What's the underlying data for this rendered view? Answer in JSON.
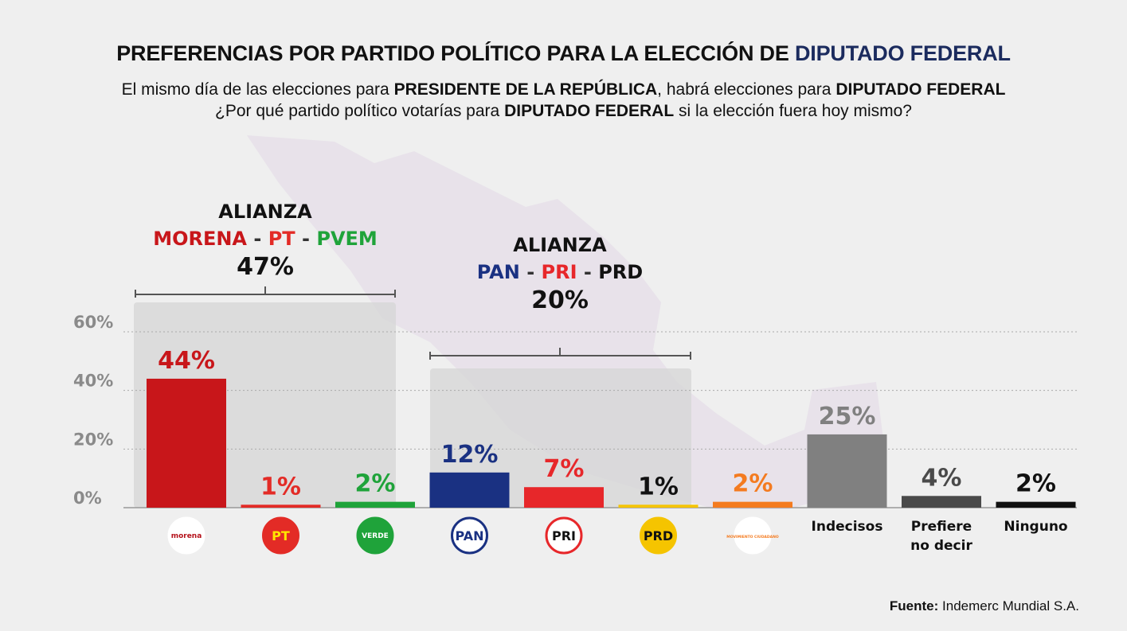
{
  "header": {
    "title_main": "PREFERENCIAS POR PARTIDO POLÍTICO PARA LA ELECCIÓN DE",
    "title_highlight": "DIPUTADO FEDERAL",
    "sub1_a": "El mismo día de las elecciones para",
    "sub1_b": "PRESIDENTE DE LA REPÚBLICA",
    "sub1_c": ", habrá elecciones para",
    "sub1_d": "DIPUTADO FEDERAL",
    "sub2_a": "¿Por qué partido político votarías para",
    "sub2_b": "DIPUTADO FEDERAL",
    "sub2_c": "si la elección fuera hoy mismo?"
  },
  "alliances": {
    "a1": {
      "label": "ALIANZA",
      "p1": "MORENA",
      "p2": "PT",
      "p3": "PVEM",
      "dash": "-",
      "total": "47%"
    },
    "a2": {
      "label": "ALIANZA",
      "p1": "PAN",
      "p2": "PRI",
      "p3": "PRD",
      "dash": "-",
      "total": "20%"
    }
  },
  "footer": {
    "label": "Fuente:",
    "value": "Indemerc Mundial S.A."
  },
  "chart_data": {
    "type": "bar",
    "title": "PREFERENCIAS POR PARTIDO POLÍTICO PARA LA ELECCIÓN DE DIPUTADO FEDERAL",
    "ylim": [
      0,
      60
    ],
    "yticks": [
      {
        "value": 0,
        "label": "0%"
      },
      {
        "value": 20,
        "label": "20%"
      },
      {
        "value": 40,
        "label": "40%"
      },
      {
        "value": 60,
        "label": "60%"
      }
    ],
    "grid": true,
    "categories": [
      "morena",
      "PT",
      "VERDE",
      "PAN",
      "PRI",
      "PRD",
      "MOVIMIENTO CIUDADANO",
      "Indecisos",
      "Prefiere no decir",
      "Ninguno"
    ],
    "values": [
      44,
      1,
      2,
      12,
      7,
      1,
      2,
      25,
      4,
      2
    ],
    "value_labels": [
      "44%",
      "1%",
      "2%",
      "12%",
      "7%",
      "1%",
      "2%",
      "25%",
      "4%",
      "2%"
    ],
    "colors": [
      "#c8161a",
      "#e32b26",
      "#1fa33a",
      "#1a3182",
      "#e7272a",
      "#f5c400",
      "#f47b20",
      "#808080",
      "#4a4a4a",
      "#111111"
    ],
    "label_colors": [
      "#c8161a",
      "#e32b26",
      "#1fa33a",
      "#1a3182",
      "#e7272a",
      "#111111",
      "#f47b20",
      "#808080",
      "#4a4a4a",
      "#111111"
    ],
    "text_categories": [
      {
        "index": 7,
        "lines": [
          "Indecisos"
        ]
      },
      {
        "index": 8,
        "lines": [
          "Prefiere",
          "no decir"
        ]
      },
      {
        "index": 9,
        "lines": [
          "Ninguno"
        ]
      }
    ],
    "logos": [
      {
        "index": 0,
        "text": "morena",
        "bg": "#ffffff",
        "fg": "#b5121b",
        "ring": "#ffffff"
      },
      {
        "index": 1,
        "text": "PT",
        "bg": "#e32b26",
        "fg": "#ffe600",
        "ring": "#e32b26"
      },
      {
        "index": 2,
        "text": "VERDE",
        "bg": "#1fa33a",
        "fg": "#ffffff",
        "ring": "#1fa33a"
      },
      {
        "index": 3,
        "text": "PAN",
        "bg": "#ffffff",
        "fg": "#1a3182",
        "ring": "#1a3182"
      },
      {
        "index": 4,
        "text": "PRI",
        "bg": "#ffffff",
        "fg": "#111111",
        "ring": "#e7272a"
      },
      {
        "index": 5,
        "text": "PRD",
        "bg": "#f5c400",
        "fg": "#111111",
        "ring": "#f5c400"
      },
      {
        "index": 6,
        "text": "MOVIMIENTO CIUDADANO",
        "bg": "#ffffff",
        "fg": "#f47b20",
        "ring": "#ffffff"
      }
    ],
    "groups": [
      {
        "label": "ALIANZA MORENA - PT - PVEM",
        "indices": [
          0,
          1,
          2
        ],
        "total": 47
      },
      {
        "label": "ALIANZA PAN - PRI - PRD",
        "indices": [
          3,
          4,
          5
        ],
        "total": 20
      }
    ]
  }
}
